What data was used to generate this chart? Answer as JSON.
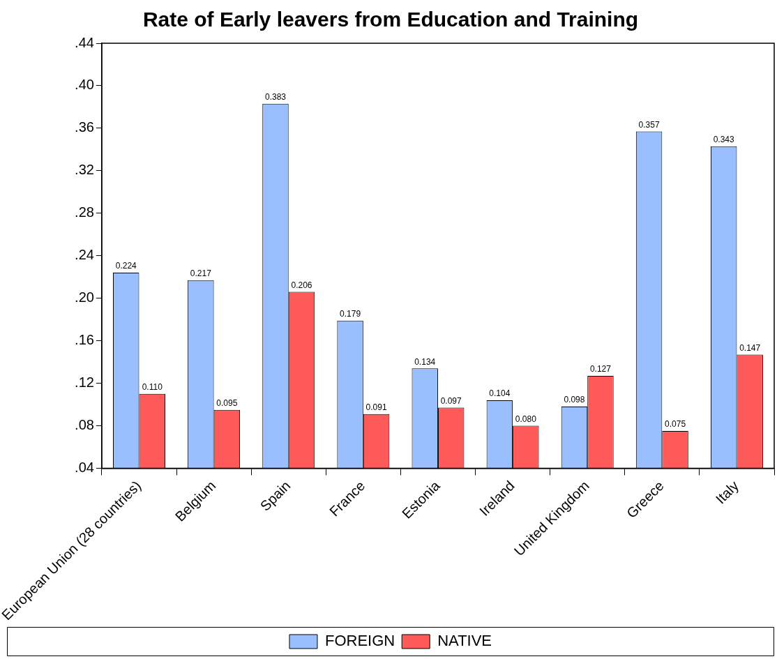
{
  "chart_data": {
    "type": "bar",
    "title": "Rate of Early leavers from Education and Training",
    "categories": [
      "European Union (28 countries)",
      "Belgium",
      "Spain",
      "France",
      "Estonia",
      "Ireland",
      "United Kingdom",
      "Greece",
      "Italy"
    ],
    "series": [
      {
        "name": "FOREIGN",
        "color": "#99bfff",
        "values": [
          0.224,
          0.217,
          0.383,
          0.179,
          0.134,
          0.104,
          0.098,
          0.357,
          0.343
        ],
        "value_labels": [
          "0.224",
          "0.217",
          "0.383",
          "0.179",
          "0.134",
          "0.104",
          "0.098",
          "0.357",
          "0.343"
        ]
      },
      {
        "name": "NATIVE",
        "color": "#ff5a5a",
        "values": [
          0.11,
          0.095,
          0.206,
          0.091,
          0.097,
          0.08,
          0.127,
          0.075,
          0.147
        ],
        "value_labels": [
          "0.110",
          "0.095",
          "0.206",
          "0.091",
          "0.097",
          "0.080",
          "0.127",
          "0.075",
          "0.147"
        ]
      }
    ],
    "ylim": [
      0.04,
      0.44
    ],
    "yticks": [
      {
        "value": 0.04,
        "label": ".04"
      },
      {
        "value": 0.08,
        "label": ".08"
      },
      {
        "value": 0.12,
        "label": ".12"
      },
      {
        "value": 0.16,
        "label": ".16"
      },
      {
        "value": 0.2,
        "label": ".20"
      },
      {
        "value": 0.24,
        "label": ".24"
      },
      {
        "value": 0.28,
        "label": ".28"
      },
      {
        "value": 0.32,
        "label": ".32"
      },
      {
        "value": 0.36,
        "label": ".36"
      },
      {
        "value": 0.4,
        "label": ".40"
      },
      {
        "value": 0.44,
        "label": ".44"
      }
    ],
    "grid": false,
    "legend": "bottom"
  }
}
